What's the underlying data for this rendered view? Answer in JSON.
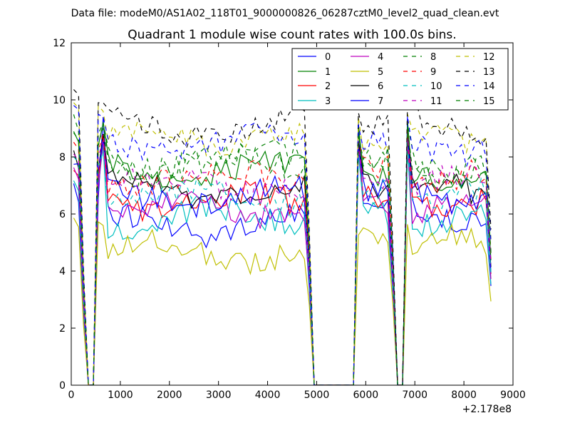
{
  "figure": {
    "suptitle": "Data file: modeM0/AS1A02_118T01_9000000826_06287cztM0_level2_quad_clean.evt"
  },
  "chart_data": {
    "type": "line",
    "title": "Quadrant 1 module wise count rates with 100.0s bins.",
    "xlabel": "",
    "ylabel": "",
    "x_offset_label": "+2.178e8",
    "xlim": [
      0,
      9000
    ],
    "ylim": [
      0,
      12
    ],
    "xticks": [
      0,
      1000,
      2000,
      3000,
      4000,
      5000,
      6000,
      7000,
      8000,
      9000
    ],
    "yticks": [
      0,
      2,
      4,
      6,
      8,
      10,
      12
    ],
    "grid": false,
    "legend": {
      "placement": "top-right",
      "columns": 4
    },
    "segments": [
      {
        "x_start": 50,
        "x_end": 4750,
        "step": 100,
        "drop_to_zero": [
          250,
          350
        ]
      },
      {
        "x_start": 5850,
        "x_end": 6550,
        "step": 100
      },
      {
        "x_start": 6850,
        "x_end": 8550,
        "step": 100
      }
    ],
    "zero_gaps": [
      [
        4950,
        5750
      ],
      [
        6650,
        6750
      ]
    ],
    "series": [
      {
        "name": "0",
        "color": "#0000ff",
        "dash": "solid",
        "level": 5.6,
        "seg2": 6.3,
        "seg3": 5.8,
        "peak": 9.4
      },
      {
        "name": "1",
        "color": "#008000",
        "dash": "solid",
        "level": 7.5,
        "seg2": 7.4,
        "seg3": 7.3,
        "peak": 9.2
      },
      {
        "name": "2",
        "color": "#ff0000",
        "dash": "solid",
        "level": 6.4,
        "seg2": 6.6,
        "seg3": 6.5,
        "peak": 8.8
      },
      {
        "name": "3",
        "color": "#00bfbf",
        "dash": "solid",
        "level": 5.9,
        "seg2": 6.0,
        "seg3": 5.9,
        "peak": 8.4
      },
      {
        "name": "4",
        "color": "#bf00bf",
        "dash": "solid",
        "level": 6.2,
        "seg2": 6.4,
        "seg3": 6.2,
        "peak": 8.6
      },
      {
        "name": "5",
        "color": "#bfbf00",
        "dash": "solid",
        "level": 4.7,
        "seg2": 5.3,
        "seg3": 4.9,
        "peak": 5.6
      },
      {
        "name": "6",
        "color": "#000000",
        "dash": "solid",
        "level": 6.8,
        "seg2": 7.0,
        "seg3": 6.9,
        "peak": 8.8
      },
      {
        "name": "7",
        "color": "#0000ff",
        "dash": "solid",
        "level": 6.6,
        "seg2": 6.8,
        "seg3": 6.6,
        "peak": 8.6
      },
      {
        "name": "8",
        "color": "#008000",
        "dash": "dashed",
        "level": 8.0,
        "seg2": 8.0,
        "seg3": 7.8,
        "peak": 9.2
      },
      {
        "name": "9",
        "color": "#ff0000",
        "dash": "dashed",
        "level": 7.3,
        "seg2": 7.6,
        "seg3": 7.4,
        "peak": 8.8
      },
      {
        "name": "10",
        "color": "#00bfbf",
        "dash": "dashed",
        "level": 6.6,
        "seg2": 6.8,
        "seg3": 6.6,
        "peak": 8.2
      },
      {
        "name": "11",
        "color": "#bf00bf",
        "dash": "dashed",
        "level": 7.0,
        "seg2": 7.2,
        "seg3": 7.1,
        "peak": 8.6
      },
      {
        "name": "12",
        "color": "#bfbf00",
        "dash": "dashed",
        "level": 8.7,
        "seg2": 8.6,
        "seg3": 8.5,
        "peak": 9.6
      },
      {
        "name": "13",
        "color": "#000000",
        "dash": "dashed",
        "level": 9.0,
        "seg2": 9.1,
        "seg3": 9.1,
        "peak": 9.9
      },
      {
        "name": "14",
        "color": "#0000ff",
        "dash": "dashed",
        "level": 8.5,
        "seg2": 8.6,
        "seg3": 8.4,
        "peak": 9.4
      },
      {
        "name": "15",
        "color": "#008000",
        "dash": "dashed",
        "level": 7.7,
        "seg2": 7.9,
        "seg3": 7.7,
        "peak": 9.0
      }
    ]
  }
}
